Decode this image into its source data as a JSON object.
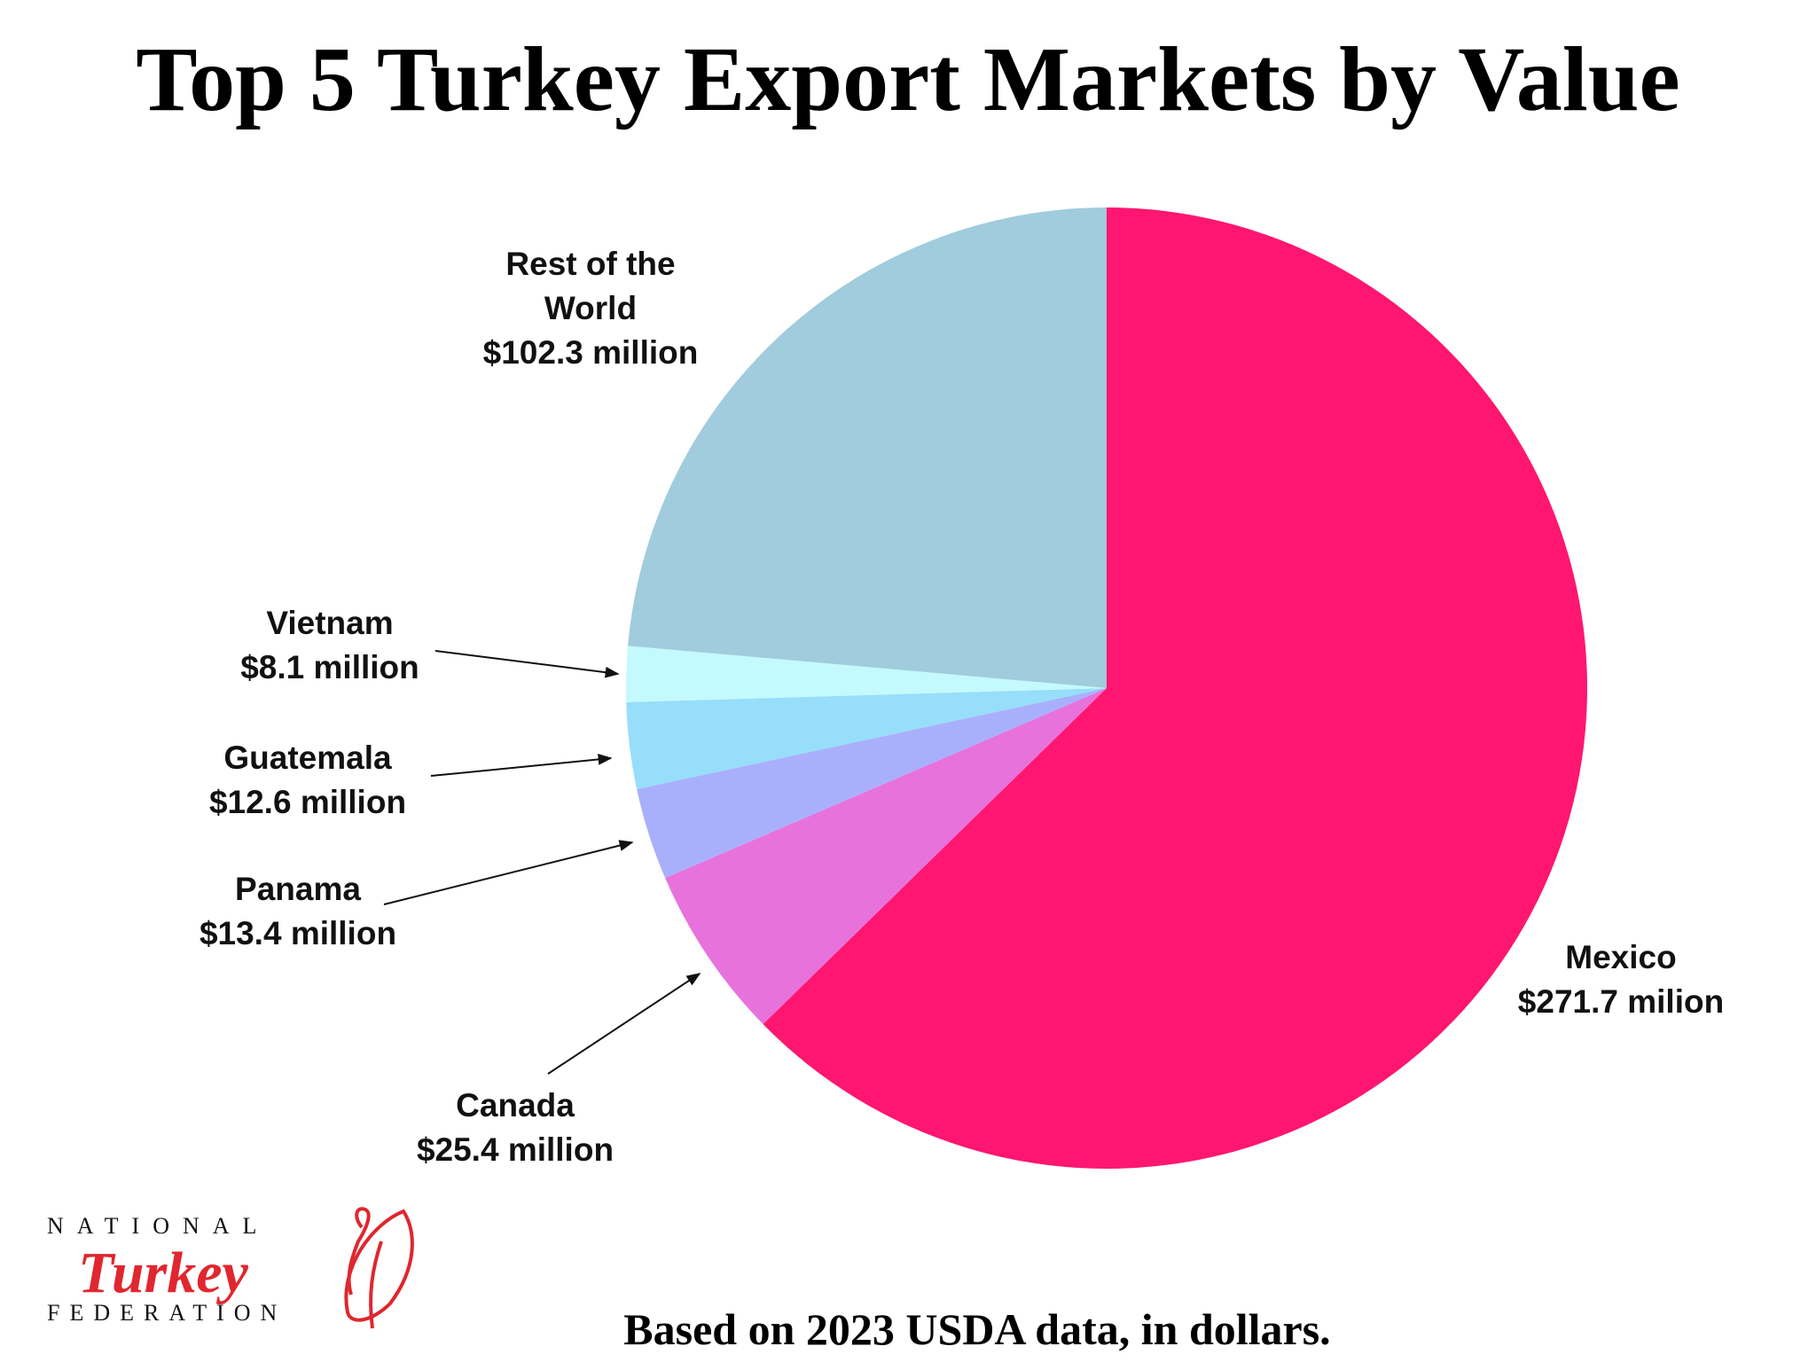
{
  "chart_data": {
    "type": "pie",
    "title": "Top 5 Turkey Export Markets by Value",
    "note": "Based on 2023 USDA data, in dollars.",
    "categories": [
      "Mexico",
      "Canada",
      "Panama",
      "Guatemala",
      "Vietnam",
      "Rest of the World"
    ],
    "values": [
      271.7,
      25.4,
      13.4,
      12.6,
      8.1,
      102.3
    ],
    "value_labels": [
      "$271.7 milion",
      "$25.4 million",
      "$13.4 million",
      "$12.6 million",
      "$8.1 million",
      "$102.3 million"
    ],
    "colors": [
      "#fe1670",
      "#e872dc",
      "#a9b0fb",
      "#97defb",
      "#c4fafd",
      "#a0ccdd"
    ]
  },
  "logo": {
    "line1": "NATIONAL",
    "line2": "Turkey",
    "line3": "FEDERATION"
  }
}
